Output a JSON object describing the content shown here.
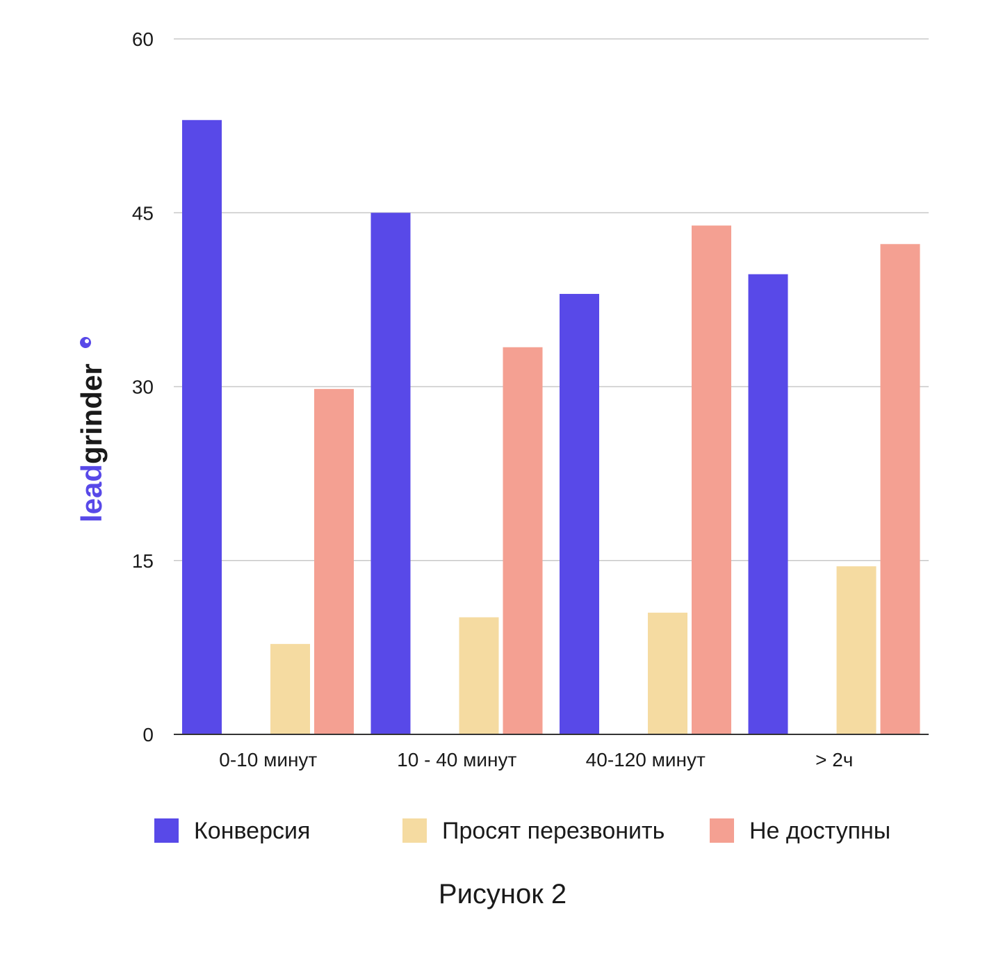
{
  "chart_data": {
    "type": "bar",
    "categories": [
      "0-10 минут",
      "10 - 40 минут",
      "40-120 минут",
      "> 2ч"
    ],
    "series": [
      {
        "name": "Конверсия",
        "color": "#5849E8",
        "values": [
          53,
          45,
          38,
          39.7
        ]
      },
      {
        "name": "Просят перезвонить",
        "color": "#F5DBA1",
        "values": [
          7.8,
          10.1,
          10.5,
          14.5
        ]
      },
      {
        "name": "Не доступны",
        "color": "#F4A092",
        "values": [
          29.8,
          33.4,
          43.9,
          42.3
        ]
      }
    ],
    "ylim": [
      0,
      60
    ],
    "yticks": [
      "0",
      "15",
      "30",
      "45",
      "60"
    ],
    "grid": true,
    "legend_position": "bottom"
  },
  "caption": "Рисунок 2",
  "logo": {
    "text_accent": "lead",
    "text_main": "grinder",
    "accent_color": "#5849E8",
    "main_color": "#1a1a1a"
  }
}
